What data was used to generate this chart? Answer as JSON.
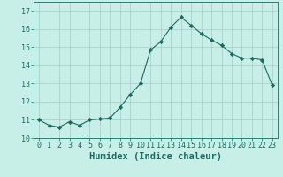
{
  "x": [
    0,
    1,
    2,
    3,
    4,
    5,
    6,
    7,
    8,
    9,
    10,
    11,
    12,
    13,
    14,
    15,
    16,
    17,
    18,
    19,
    20,
    21,
    22,
    23
  ],
  "y": [
    11.0,
    10.7,
    10.6,
    10.9,
    10.7,
    11.0,
    11.05,
    11.1,
    11.7,
    12.4,
    13.0,
    14.85,
    15.3,
    16.1,
    16.65,
    16.2,
    15.75,
    15.4,
    15.1,
    14.65,
    14.4,
    14.4,
    14.3,
    12.9
  ],
  "line_color": "#1a6b5e",
  "marker": "D",
  "marker_size": 2.2,
  "bg_color": "#c8eee8",
  "grid_color": "#a0ccc4",
  "xlabel": "Humidex (Indice chaleur)",
  "xlim": [
    -0.5,
    23.5
  ],
  "ylim": [
    10.0,
    17.5
  ],
  "yticks": [
    10,
    11,
    12,
    13,
    14,
    15,
    16,
    17
  ],
  "xticks": [
    0,
    1,
    2,
    3,
    4,
    5,
    6,
    7,
    8,
    9,
    10,
    11,
    12,
    13,
    14,
    15,
    16,
    17,
    18,
    19,
    20,
    21,
    22,
    23
  ],
  "xlabel_fontsize": 7.5,
  "tick_fontsize": 6.0
}
